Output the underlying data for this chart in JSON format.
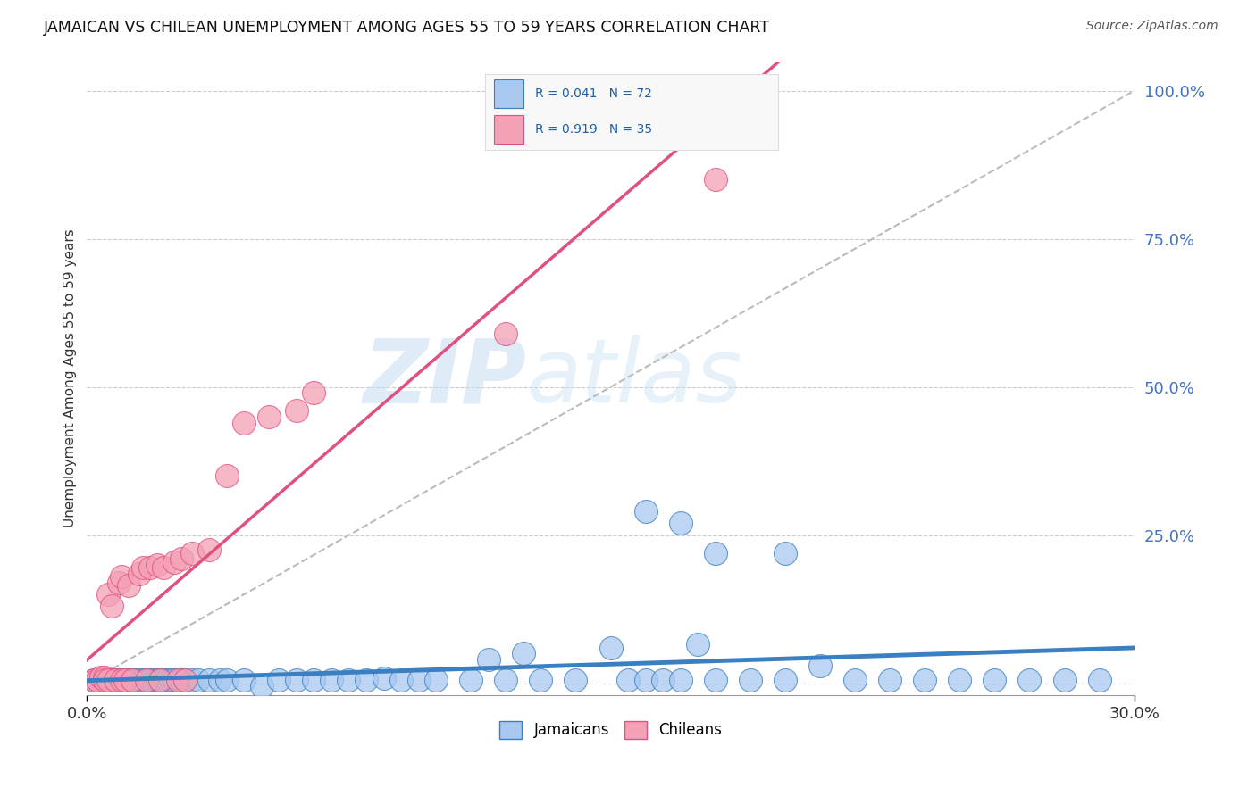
{
  "title": "JAMAICAN VS CHILEAN UNEMPLOYMENT AMONG AGES 55 TO 59 YEARS CORRELATION CHART",
  "source": "Source: ZipAtlas.com",
  "ylabel": "Unemployment Among Ages 55 to 59 years",
  "xlim": [
    0.0,
    0.3
  ],
  "ylim": [
    -0.02,
    1.05
  ],
  "yticks_right": [
    0.0,
    0.25,
    0.5,
    0.75,
    1.0
  ],
  "ytick_labels_right": [
    "",
    "25.0%",
    "50.0%",
    "75.0%",
    "100.0%"
  ],
  "jamaican_color": "#A8C8F0",
  "chilean_color": "#F4A0B5",
  "jamaican_line_color": "#3A7FC1",
  "chilean_line_color": "#E05080",
  "jamaicans_x": [
    0.002,
    0.003,
    0.004,
    0.005,
    0.006,
    0.007,
    0.008,
    0.009,
    0.01,
    0.011,
    0.012,
    0.013,
    0.014,
    0.015,
    0.016,
    0.017,
    0.018,
    0.019,
    0.02,
    0.021,
    0.022,
    0.023,
    0.024,
    0.025,
    0.026,
    0.027,
    0.028,
    0.03,
    0.032,
    0.035,
    0.038,
    0.04,
    0.045,
    0.05,
    0.055,
    0.06,
    0.065,
    0.07,
    0.075,
    0.08,
    0.085,
    0.09,
    0.095,
    0.1,
    0.11,
    0.115,
    0.12,
    0.125,
    0.13,
    0.14,
    0.15,
    0.155,
    0.16,
    0.165,
    0.17,
    0.175,
    0.18,
    0.19,
    0.2,
    0.21,
    0.22,
    0.23,
    0.24,
    0.25,
    0.26,
    0.27,
    0.28,
    0.29,
    0.16,
    0.17,
    0.18,
    0.2
  ],
  "jamaicans_y": [
    0.005,
    0.005,
    0.005,
    0.008,
    0.005,
    0.005,
    0.005,
    0.005,
    0.005,
    0.005,
    0.005,
    0.005,
    0.005,
    0.005,
    0.005,
    0.005,
    0.005,
    0.005,
    0.005,
    0.005,
    0.005,
    0.005,
    0.005,
    0.005,
    0.005,
    0.005,
    0.005,
    0.005,
    0.005,
    0.005,
    0.005,
    0.005,
    0.005,
    -0.005,
    0.005,
    0.005,
    0.005,
    0.005,
    0.005,
    0.005,
    0.008,
    0.005,
    0.005,
    0.005,
    0.005,
    0.04,
    0.005,
    0.05,
    0.005,
    0.005,
    0.06,
    0.005,
    0.005,
    0.005,
    0.005,
    0.065,
    0.005,
    0.005,
    0.005,
    0.03,
    0.005,
    0.005,
    0.005,
    0.005,
    0.005,
    0.005,
    0.005,
    0.005,
    0.29,
    0.27,
    0.22,
    0.22
  ],
  "chileans_x": [
    0.002,
    0.003,
    0.004,
    0.005,
    0.005,
    0.006,
    0.006,
    0.007,
    0.008,
    0.009,
    0.01,
    0.01,
    0.011,
    0.012,
    0.013,
    0.015,
    0.016,
    0.017,
    0.018,
    0.02,
    0.021,
    0.022,
    0.025,
    0.026,
    0.027,
    0.028,
    0.03,
    0.035,
    0.04,
    0.045,
    0.052,
    0.06,
    0.065,
    0.12,
    0.18
  ],
  "chileans_y": [
    0.005,
    0.005,
    0.01,
    0.01,
    0.005,
    0.15,
    0.005,
    0.13,
    0.005,
    0.17,
    0.005,
    0.18,
    0.005,
    0.165,
    0.005,
    0.185,
    0.195,
    0.005,
    0.195,
    0.2,
    0.005,
    0.195,
    0.205,
    0.005,
    0.21,
    0.005,
    0.22,
    0.225,
    0.35,
    0.44,
    0.45,
    0.46,
    0.49,
    0.59,
    0.85
  ],
  "ref_line_x": [
    0.0,
    0.3
  ],
  "ref_line_y": [
    0.0,
    1.0
  ]
}
